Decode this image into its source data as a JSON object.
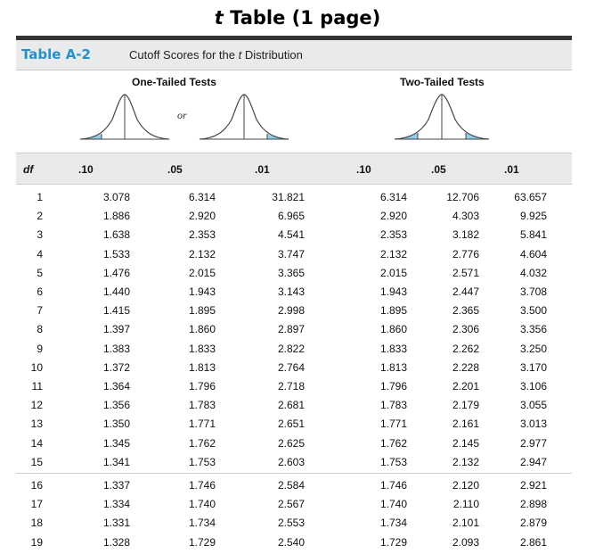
{
  "page_title": {
    "italic": "t",
    "rest": " Table (1 page)"
  },
  "table": {
    "label": "Table A-2",
    "caption_pre": "Cutoff Scores for the ",
    "caption_italic": "t",
    "caption_post": " Distribution"
  },
  "groups": {
    "one_tailed": "One-Tailed Tests",
    "two_tailed": "Two-Tailed Tests",
    "or": "or"
  },
  "colors": {
    "label_blue": "#2a8fc7",
    "shade_blue": "#8fcde9",
    "band_gray": "#e9eaec"
  },
  "columns": [
    "df",
    ".10",
    ".05",
    ".01",
    ".10",
    ".05",
    ".01"
  ],
  "rows": [
    [
      "1",
      "3.078",
      "6.314",
      "31.821",
      "6.314",
      "12.706",
      "63.657"
    ],
    [
      "2",
      "1.886",
      "2.920",
      "6.965",
      "2.920",
      "4.303",
      "9.925"
    ],
    [
      "3",
      "1.638",
      "2.353",
      "4.541",
      "2.353",
      "3.182",
      "5.841"
    ],
    [
      "4",
      "1.533",
      "2.132",
      "3.747",
      "2.132",
      "2.776",
      "4.604"
    ],
    [
      "5",
      "1.476",
      "2.015",
      "3.365",
      "2.015",
      "2.571",
      "4.032"
    ],
    [
      "6",
      "1.440",
      "1.943",
      "3.143",
      "1.943",
      "2.447",
      "3.708"
    ],
    [
      "7",
      "1.415",
      "1.895",
      "2.998",
      "1.895",
      "2.365",
      "3.500"
    ],
    [
      "8",
      "1.397",
      "1.860",
      "2.897",
      "1.860",
      "2.306",
      "3.356"
    ],
    [
      "9",
      "1.383",
      "1.833",
      "2.822",
      "1.833",
      "2.262",
      "3.250"
    ],
    [
      "10",
      "1.372",
      "1.813",
      "2.764",
      "1.813",
      "2.228",
      "3.170"
    ],
    [
      "11",
      "1.364",
      "1.796",
      "2.718",
      "1.796",
      "2.201",
      "3.106"
    ],
    [
      "12",
      "1.356",
      "1.783",
      "2.681",
      "1.783",
      "2.179",
      "3.055"
    ],
    [
      "13",
      "1.350",
      "1.771",
      "2.651",
      "1.771",
      "2.161",
      "3.013"
    ],
    [
      "14",
      "1.345",
      "1.762",
      "2.625",
      "1.762",
      "2.145",
      "2.977"
    ],
    [
      "15",
      "1.341",
      "1.753",
      "2.603",
      "1.753",
      "2.132",
      "2.947"
    ],
    [
      "16",
      "1.337",
      "1.746",
      "2.584",
      "1.746",
      "2.120",
      "2.921"
    ],
    [
      "17",
      "1.334",
      "1.740",
      "2.567",
      "1.740",
      "2.110",
      "2.898"
    ],
    [
      "18",
      "1.331",
      "1.734",
      "2.553",
      "1.734",
      "2.101",
      "2.879"
    ],
    [
      "19",
      "1.328",
      "1.729",
      "2.540",
      "1.729",
      "2.093",
      "2.861"
    ]
  ]
}
